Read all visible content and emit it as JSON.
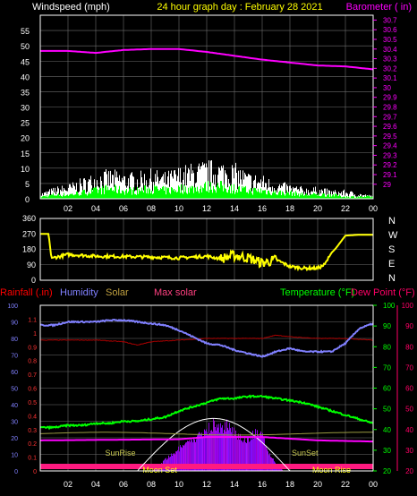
{
  "header": {
    "wind_label": "Windspeed (mph)",
    "title": "24 hour graph day : February 28 2021",
    "baro_label": "Barometer ( in)"
  },
  "colors": {
    "background": "#000000",
    "grid": "#6e6e6e",
    "frame": "#ffffff",
    "wind": "#ffffff",
    "gust": "#00ff00",
    "barometer": "#ff00ff",
    "direction": "#ffff00",
    "humidity": "#8080ff",
    "temperature": "#00ff00",
    "dewpoint": "#ff0066",
    "solar": "#ffff00",
    "max_solar": "#ffffff",
    "rain_axis": "#6666ff",
    "moon_bar": "#ff1a80"
  },
  "x_axis": {
    "ticks": [
      "02",
      "04",
      "06",
      "08",
      "10",
      "12",
      "14",
      "16",
      "18",
      "20",
      "22",
      "00"
    ]
  },
  "chart_data": [
    {
      "type": "line",
      "name": "wind-barometer",
      "left_axis": {
        "label": "Windspeed (mph)",
        "range": [
          0,
          60
        ],
        "ticks": [
          "0",
          "5",
          "10",
          "15",
          "20",
          "25",
          "30",
          "35",
          "40",
          "45",
          "50",
          "55"
        ]
      },
      "right_axis": {
        "label": "Barometer ( in)",
        "range": [
          28.85,
          30.75
        ],
        "ticks": [
          "29",
          "29.1",
          "29.2",
          "29.3",
          "29.4",
          "29.5",
          "29.6",
          "29.7",
          "29.8",
          "29.9",
          "30",
          "30.1",
          "30.2",
          "30.3",
          "30.4",
          "30.5",
          "30.6",
          "30.7"
        ]
      },
      "grid": true,
      "barometer": {
        "hours": [
          0,
          2,
          4,
          6,
          8,
          10,
          12,
          14,
          16,
          18,
          20,
          22,
          24
        ],
        "values": [
          30.38,
          30.38,
          30.36,
          30.39,
          30.4,
          30.4,
          30.37,
          30.33,
          30.29,
          30.26,
          30.23,
          30.22,
          30.19
        ]
      },
      "wind_envelope": {
        "hours": [
          0,
          1,
          2,
          3,
          4,
          5,
          6,
          7,
          8,
          9,
          10,
          11,
          12,
          13,
          14,
          15,
          16,
          17,
          18,
          19,
          20,
          21,
          22,
          23,
          24
        ],
        "max": [
          2,
          4,
          5,
          7,
          9,
          10,
          9,
          9,
          10,
          9,
          11,
          12,
          13,
          13,
          12,
          9,
          8,
          6,
          5,
          4,
          4,
          3,
          3,
          2,
          1
        ],
        "gust": [
          1,
          2,
          2,
          3,
          4,
          5,
          4,
          4,
          5,
          4,
          5,
          5,
          6,
          6,
          5,
          4,
          4,
          3,
          3,
          2,
          2,
          2,
          1,
          1,
          1
        ]
      }
    },
    {
      "type": "line",
      "name": "wind-direction",
      "left_axis": {
        "range": [
          0,
          360
        ],
        "ticks": [
          "0",
          "90",
          "180",
          "270",
          "360"
        ]
      },
      "right_axis": {
        "ticks": [
          "N",
          "W",
          "S",
          "E",
          "N"
        ]
      },
      "grid": true,
      "direction": {
        "hours": [
          0,
          0.6,
          0.8,
          1.5,
          2,
          3,
          4,
          6,
          8,
          10,
          12,
          13,
          14,
          15,
          16,
          17,
          17.5,
          18,
          19,
          20,
          20.5,
          21,
          21.3,
          22,
          23,
          24
        ],
        "values": [
          270,
          270,
          130,
          140,
          150,
          145,
          140,
          138,
          135,
          130,
          140,
          125,
          145,
          130,
          100,
          120,
          100,
          80,
          70,
          70,
          90,
          160,
          185,
          260,
          265,
          265
        ]
      }
    },
    {
      "type": "line",
      "name": "rain-humidity-solar-temperature",
      "legend_labels": [
        "Rainfall (.in)",
        "Humidity",
        "Solar",
        "Max solar",
        "Temperature (°F)",
        "Dew Point (°F)"
      ],
      "axes": {
        "rain": {
          "ticks": [
            "0",
            "0.1",
            "0.2",
            "0.3",
            "0.4",
            "0.5",
            "0.6",
            "0.7",
            "0.8",
            "0.9",
            "1",
            "1.1"
          ],
          "range": [
            0,
            1.2
          ]
        },
        "humidity": {
          "ticks": [
            "0",
            "10",
            "20",
            "30",
            "40",
            "50",
            "60",
            "70",
            "80",
            "90",
            "100"
          ],
          "range": [
            0,
            100
          ]
        },
        "temperature": {
          "ticks": [
            "20",
            "30",
            "40",
            "50",
            "60",
            "70",
            "80",
            "90",
            "100"
          ],
          "range": [
            20,
            100
          ]
        },
        "dewpoint": {
          "ticks": [
            "20",
            "30",
            "40",
            "50",
            "60",
            "70",
            "80",
            "90",
            "100"
          ],
          "range": [
            20,
            100
          ]
        }
      },
      "grid": true,
      "humidity": {
        "hours": [
          0,
          1,
          2,
          3,
          4,
          5,
          6,
          7,
          8,
          9,
          10,
          11,
          12,
          13,
          14,
          15,
          16,
          17,
          18,
          19,
          20,
          21,
          22,
          23,
          24
        ],
        "values": [
          88,
          88,
          90,
          90,
          90,
          91,
          91,
          90,
          89,
          88,
          85,
          81,
          77,
          76,
          73,
          71,
          69,
          72,
          74,
          72,
          72,
          72,
          77,
          86,
          89
        ]
      },
      "temperature": {
        "hours": [
          0,
          1,
          2,
          3,
          4,
          5,
          6,
          7,
          8,
          9,
          10,
          11,
          12,
          13,
          14,
          15,
          16,
          17,
          18,
          19,
          20,
          21,
          22,
          23,
          24
        ],
        "values": [
          41,
          41,
          42,
          42,
          43,
          43,
          44,
          44,
          45,
          46,
          49,
          51,
          53,
          55,
          55,
          56,
          56,
          55,
          54,
          53,
          51,
          49,
          47,
          45,
          43
        ]
      },
      "dewpoint": {
        "hours": [
          0,
          2,
          4,
          6,
          7,
          8,
          10,
          12,
          14,
          16,
          17,
          18,
          20,
          22,
          24
        ],
        "values": [
          79,
          79,
          79,
          78,
          76,
          78,
          79,
          80,
          80,
          80,
          82,
          81,
          80,
          80,
          79
        ]
      },
      "solar_axis_value": [
        {
          "h": 0,
          "v": 0.27
        },
        {
          "h": 10,
          "v": 0.28
        },
        {
          "h": 12,
          "v": 0.3
        },
        {
          "h": 14,
          "v": 0.3
        },
        {
          "h": 16,
          "v": 0.3
        },
        {
          "h": 20,
          "v": 0.27
        },
        {
          "h": 24,
          "v": 0.26
        }
      ],
      "max_solar": {
        "sunrise_hour": 7.0,
        "sunset_hour": 18.0,
        "peak": 0.38
      },
      "solar_peaks": {
        "hours": [
          8,
          9,
          10,
          11,
          12,
          12.5,
          13,
          13.5,
          14,
          14.5,
          15,
          15.5,
          16,
          16.5,
          17,
          17.5
        ],
        "values": [
          0.0,
          0.08,
          0.16,
          0.22,
          0.3,
          0.34,
          0.3,
          0.33,
          0.28,
          0.24,
          0.22,
          0.28,
          0.24,
          0.12,
          0.05,
          0.0
        ]
      },
      "events": [
        {
          "label": "SunRise",
          "hour": 7.0
        },
        {
          "label": "SunSet",
          "hour": 18.0
        },
        {
          "label": "Moon Set",
          "hour": 9.0
        },
        {
          "label": "Moon Rise",
          "hour": 21.0
        }
      ]
    }
  ]
}
